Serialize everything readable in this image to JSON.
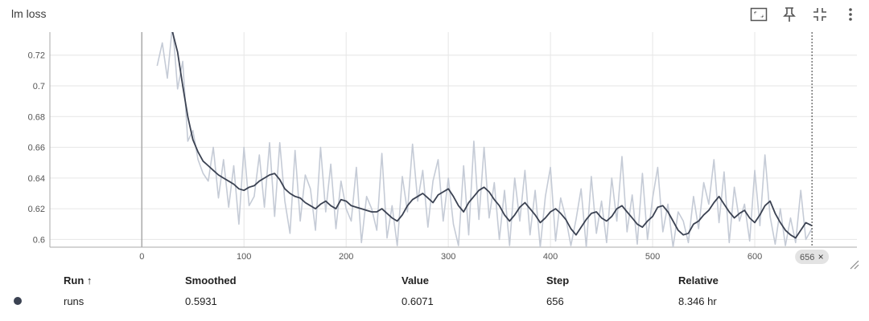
{
  "card": {
    "title": "lm loss"
  },
  "toolbar": {
    "icons": [
      "fit-domain-icon",
      "pin-icon",
      "collapse-icon",
      "more-vert-icon"
    ]
  },
  "chart_data": {
    "type": "line",
    "title": "lm loss",
    "xlabel": "",
    "ylabel": "",
    "xlim": [
      -90,
      700
    ],
    "ylim": [
      0.595,
      0.735
    ],
    "x_ticks": [
      0,
      100,
      200,
      300,
      400,
      500,
      600
    ],
    "y_ticks": [
      0.6,
      0.62,
      0.64,
      0.66,
      0.68,
      0.7,
      0.72
    ],
    "grid": true,
    "series": [
      {
        "name": "runs",
        "color": "#3b4252",
        "x": [
          15,
          20,
          25,
          30,
          35,
          40,
          45,
          50,
          55,
          60,
          65,
          70,
          75,
          80,
          85,
          90,
          95,
          100,
          105,
          110,
          115,
          120,
          125,
          130,
          135,
          140,
          145,
          150,
          155,
          160,
          165,
          170,
          175,
          180,
          185,
          190,
          195,
          200,
          205,
          210,
          215,
          220,
          225,
          230,
          235,
          240,
          245,
          250,
          255,
          260,
          265,
          270,
          275,
          280,
          285,
          290,
          295,
          300,
          305,
          310,
          315,
          320,
          325,
          330,
          335,
          340,
          345,
          350,
          355,
          360,
          365,
          370,
          375,
          380,
          385,
          390,
          395,
          400,
          405,
          410,
          415,
          420,
          425,
          430,
          435,
          440,
          445,
          450,
          455,
          460,
          465,
          470,
          475,
          480,
          485,
          490,
          495,
          500,
          505,
          510,
          515,
          520,
          525,
          530,
          535,
          540,
          545,
          550,
          555,
          560,
          565,
          570,
          575,
          580,
          585,
          590,
          595,
          600,
          605,
          610,
          615,
          620,
          625,
          630,
          635,
          640,
          645,
          650,
          656
        ],
        "smoothed": [
          0.75,
          0.745,
          0.74,
          0.735,
          0.722,
          0.7,
          0.68,
          0.665,
          0.657,
          0.651,
          0.648,
          0.645,
          0.642,
          0.64,
          0.638,
          0.636,
          0.633,
          0.632,
          0.634,
          0.635,
          0.638,
          0.64,
          0.642,
          0.643,
          0.639,
          0.633,
          0.63,
          0.628,
          0.627,
          0.624,
          0.622,
          0.62,
          0.623,
          0.625,
          0.622,
          0.62,
          0.626,
          0.625,
          0.622,
          0.621,
          0.62,
          0.619,
          0.618,
          0.618,
          0.62,
          0.617,
          0.614,
          0.612,
          0.616,
          0.622,
          0.626,
          0.628,
          0.63,
          0.627,
          0.624,
          0.629,
          0.631,
          0.633,
          0.628,
          0.622,
          0.618,
          0.624,
          0.628,
          0.632,
          0.634,
          0.631,
          0.626,
          0.622,
          0.616,
          0.612,
          0.616,
          0.621,
          0.624,
          0.62,
          0.616,
          0.611,
          0.614,
          0.618,
          0.62,
          0.617,
          0.613,
          0.607,
          0.603,
          0.608,
          0.613,
          0.617,
          0.618,
          0.614,
          0.612,
          0.615,
          0.62,
          0.622,
          0.618,
          0.614,
          0.61,
          0.608,
          0.612,
          0.615,
          0.621,
          0.622,
          0.618,
          0.612,
          0.606,
          0.603,
          0.604,
          0.61,
          0.612,
          0.616,
          0.619,
          0.624,
          0.628,
          0.623,
          0.618,
          0.614,
          0.617,
          0.619,
          0.614,
          0.611,
          0.616,
          0.622,
          0.625,
          0.617,
          0.611,
          0.606,
          0.603,
          0.601,
          0.606,
          0.611,
          0.609,
          0.604,
          0.5931
        ],
        "raw": [
          0.713,
          0.728,
          0.705,
          0.74,
          0.698,
          0.716,
          0.664,
          0.671,
          0.652,
          0.643,
          0.638,
          0.66,
          0.627,
          0.652,
          0.621,
          0.648,
          0.61,
          0.66,
          0.622,
          0.628,
          0.655,
          0.621,
          0.663,
          0.615,
          0.663,
          0.625,
          0.604,
          0.658,
          0.612,
          0.642,
          0.633,
          0.606,
          0.66,
          0.618,
          0.649,
          0.607,
          0.638,
          0.62,
          0.612,
          0.647,
          0.598,
          0.628,
          0.62,
          0.606,
          0.656,
          0.601,
          0.622,
          0.596,
          0.641,
          0.618,
          0.662,
          0.625,
          0.645,
          0.608,
          0.638,
          0.652,
          0.612,
          0.64,
          0.61,
          0.596,
          0.648,
          0.603,
          0.664,
          0.613,
          0.66,
          0.614,
          0.637,
          0.6,
          0.632,
          0.596,
          0.64,
          0.612,
          0.645,
          0.603,
          0.632,
          0.595,
          0.628,
          0.647,
          0.599,
          0.627,
          0.614,
          0.596,
          0.613,
          0.633,
          0.595,
          0.641,
          0.604,
          0.625,
          0.598,
          0.64,
          0.612,
          0.654,
          0.605,
          0.629,
          0.597,
          0.643,
          0.6,
          0.627,
          0.647,
          0.605,
          0.623,
          0.595,
          0.618,
          0.612,
          0.598,
          0.628,
          0.607,
          0.637,
          0.623,
          0.652,
          0.611,
          0.644,
          0.598,
          0.634,
          0.612,
          0.623,
          0.599,
          0.645,
          0.609,
          0.655,
          0.615,
          0.597,
          0.62,
          0.596,
          0.614,
          0.598,
          0.632,
          0.6,
          0.6071
        ]
      }
    ],
    "hover": {
      "step": 656,
      "label": "656",
      "close": "×"
    }
  },
  "table": {
    "headers": {
      "run": "Run",
      "sort": "↑",
      "smoothed": "Smoothed",
      "value": "Value",
      "step": "Step",
      "relative": "Relative"
    },
    "rows": [
      {
        "color": "#3b4252",
        "run": "runs",
        "smoothed": "0.5931",
        "value": "0.6071",
        "step": "656",
        "relative": "8.346 hr"
      }
    ]
  }
}
